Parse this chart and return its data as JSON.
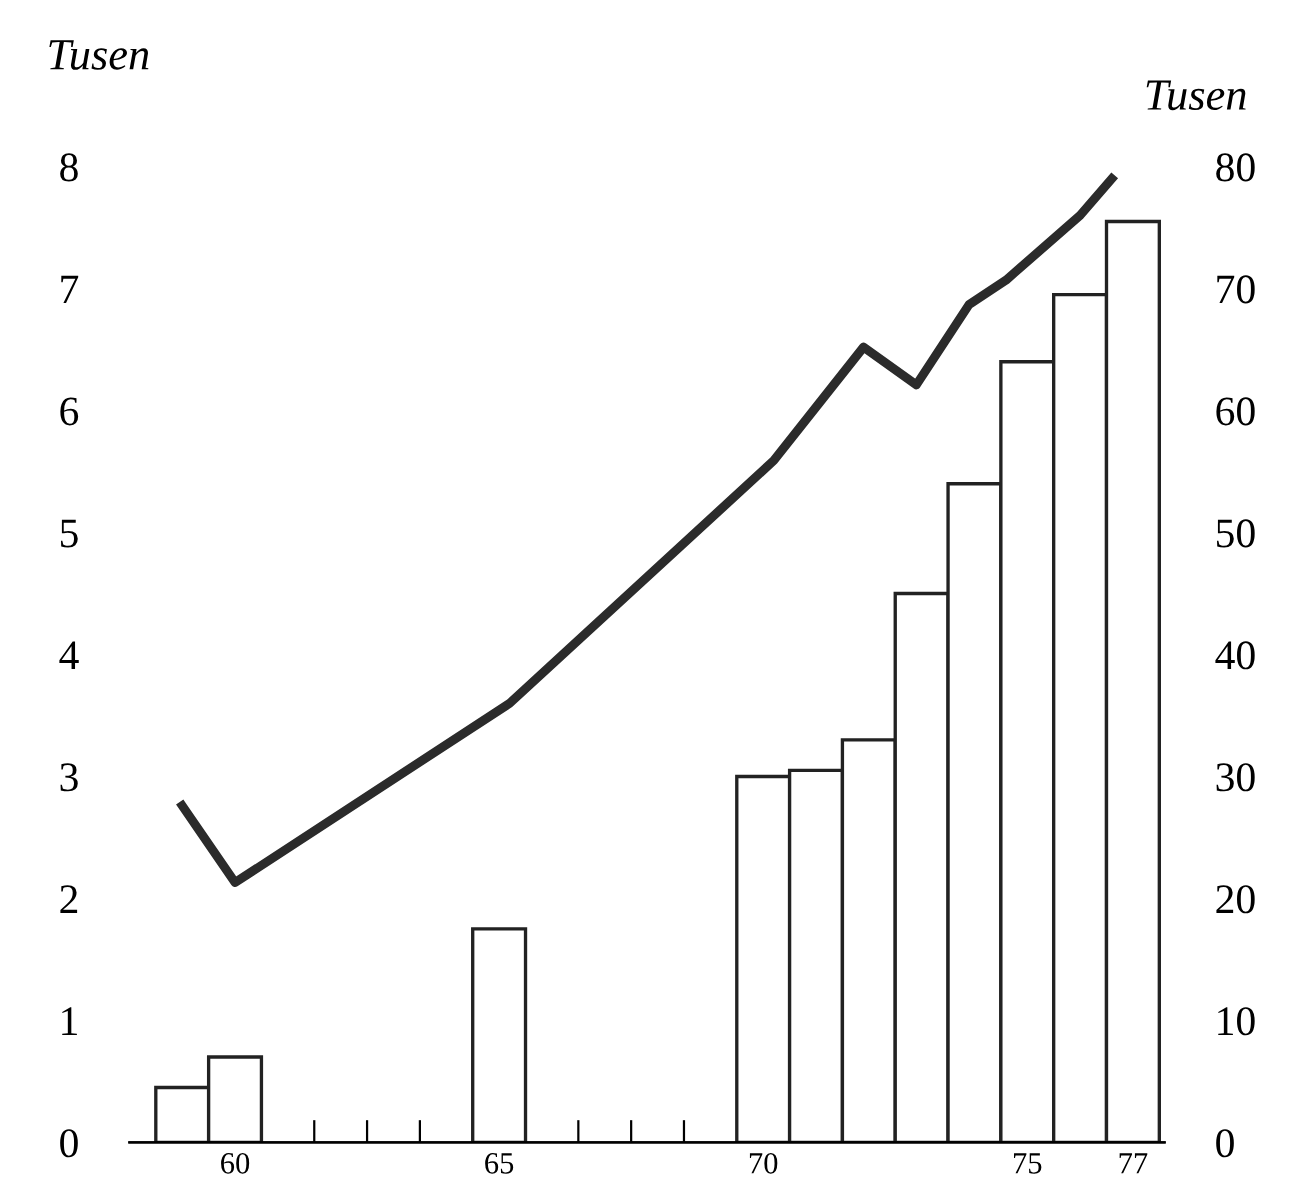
{
  "chart_data": {
    "type": "bar",
    "ylabel": "Tusen",
    "y2label": "Tusen",
    "x": [
      59,
      60,
      65,
      70,
      71,
      72,
      73,
      74,
      75,
      76,
      77
    ],
    "series": [
      {
        "color": "#ffffff",
        "values": [
          0.45,
          0.7,
          1.75,
          3.0,
          3.05,
          3.3,
          4.5,
          5.4,
          6.4,
          6.95,
          7.55
        ]
      },
      {
        "type": "line",
        "axis": "y2",
        "color": "#2b2b2b",
        "x": [
          59.0,
          60.0,
          65.2,
          70.2,
          71.9,
          72.9,
          73.9,
          74.6,
          76.0,
          76.6
        ],
        "values": [
          27.6,
          21.3,
          36.0,
          55.9,
          65.2,
          62.1,
          68.7,
          70.7,
          76.0,
          79.0
        ]
      }
    ],
    "xlim": [
      58,
      77.6
    ],
    "xticks": [
      {
        "value": 60,
        "label": "60"
      },
      {
        "value": 61.5,
        "label": null
      },
      {
        "value": 62.5,
        "label": null
      },
      {
        "value": 63.5,
        "label": null
      },
      {
        "value": 65,
        "label": "65"
      },
      {
        "value": 66.5,
        "label": null
      },
      {
        "value": 67.5,
        "label": null
      },
      {
        "value": 68.5,
        "label": null
      },
      {
        "value": 70,
        "label": "70"
      },
      {
        "value": 75,
        "label": "75"
      },
      {
        "value": 77,
        "label": "77"
      }
    ],
    "ylim": [
      0,
      8
    ],
    "yticks": [
      0,
      1,
      2,
      3,
      4,
      5,
      6,
      7,
      8
    ],
    "y2lim": [
      0,
      80
    ],
    "y2ticks": [
      0,
      10,
      20,
      30,
      40,
      50,
      60,
      70,
      80
    ],
    "grid": false,
    "legend": false,
    "marker": "none",
    "line_style": "solid"
  }
}
